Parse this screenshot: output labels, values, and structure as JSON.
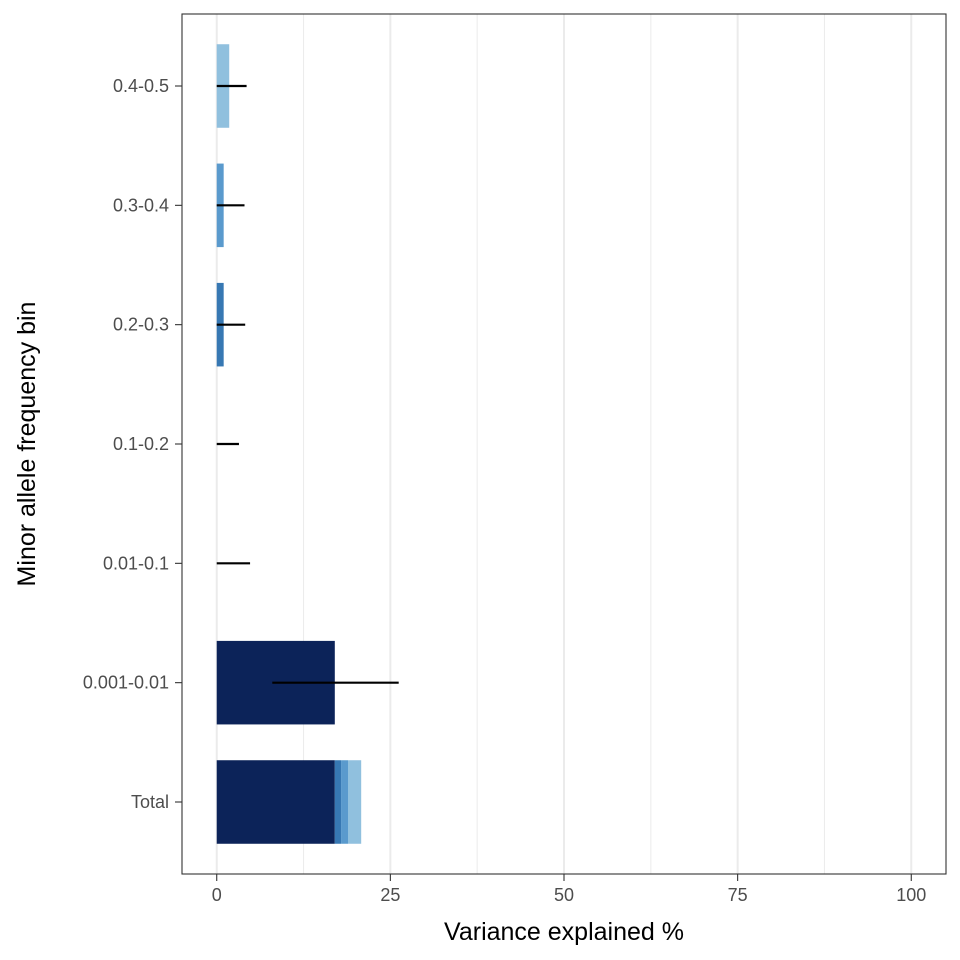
{
  "chart_data": {
    "type": "bar",
    "orientation": "horizontal",
    "stacked": true,
    "xlabel": "Variance explained %",
    "ylabel": "Minor allele frequency bin",
    "xlim": [
      -5,
      105
    ],
    "xticks": [
      0,
      25,
      50,
      75,
      100
    ],
    "grid": "vertical",
    "legend": "none",
    "categories": [
      "Total",
      "0.001-0.01",
      "0.01-0.1",
      "0.1-0.2",
      "0.2-0.3",
      "0.3-0.4",
      "0.4-0.5"
    ],
    "series": [
      {
        "color": "#0c2359",
        "values": [
          17.0,
          17.0,
          0,
          0,
          0,
          0,
          0
        ]
      },
      {
        "color": "#a9cce5",
        "values": [
          0,
          0,
          0,
          0,
          0,
          0,
          0
        ]
      },
      {
        "color": "#3778b3",
        "values": [
          0.9,
          0,
          0,
          0,
          1.0,
          0,
          0
        ]
      },
      {
        "color": "#5a9acd",
        "values": [
          1.0,
          0,
          0,
          0,
          0,
          1.0,
          0
        ]
      },
      {
        "color": "#90c0de",
        "values": [
          1.9,
          0,
          0,
          0,
          0,
          0,
          1.8
        ]
      }
    ],
    "error_bars": [
      {
        "category": "0.001-0.01",
        "low": 8,
        "high": 26.2
      },
      {
        "category": "0.01-0.1",
        "low": 0,
        "high": 4.8
      },
      {
        "category": "0.1-0.2",
        "low": 0,
        "high": 3.2
      },
      {
        "category": "0.2-0.3",
        "low": 0,
        "high": 4.1
      },
      {
        "category": "0.3-0.4",
        "low": 0,
        "high": 4.0
      },
      {
        "category": "0.4-0.5",
        "low": 0,
        "high": 4.3
      }
    ]
  }
}
